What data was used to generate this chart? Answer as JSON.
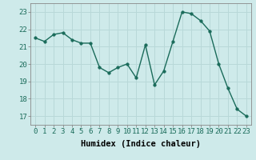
{
  "x": [
    0,
    1,
    2,
    3,
    4,
    5,
    6,
    7,
    8,
    9,
    10,
    11,
    12,
    13,
    14,
    15,
    16,
    17,
    18,
    19,
    20,
    21,
    22,
    23
  ],
  "y": [
    21.5,
    21.3,
    21.7,
    21.8,
    21.4,
    21.2,
    21.2,
    19.8,
    19.5,
    19.8,
    20.0,
    19.2,
    21.1,
    18.8,
    19.6,
    21.3,
    23.0,
    22.9,
    22.5,
    21.9,
    20.0,
    18.6,
    17.4,
    17.0
  ],
  "line_color": "#1a6b5a",
  "marker": "o",
  "markersize": 2.5,
  "linewidth": 1.0,
  "xlabel": "Humidex (Indice chaleur)",
  "xlim": [
    -0.5,
    23.5
  ],
  "ylim": [
    16.5,
    23.5
  ],
  "yticks": [
    17,
    18,
    19,
    20,
    21,
    22,
    23
  ],
  "xticks": [
    0,
    1,
    2,
    3,
    4,
    5,
    6,
    7,
    8,
    9,
    10,
    11,
    12,
    13,
    14,
    15,
    16,
    17,
    18,
    19,
    20,
    21,
    22,
    23
  ],
  "bg_color": "#ceeaea",
  "grid_color": "#b8d8d8",
  "tick_fontsize": 6.5,
  "label_fontsize": 7.5
}
